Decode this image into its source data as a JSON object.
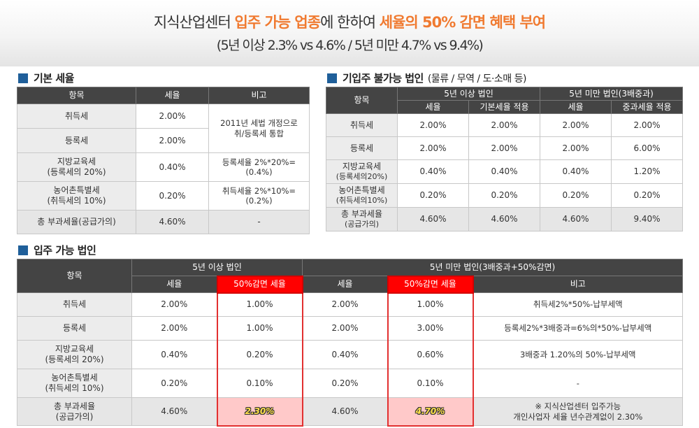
{
  "header": {
    "title_pre": "지식산업센터 ",
    "title_hl1": "입주 가능 업종",
    "title_mid": "에 한하여 ",
    "title_hl2": "세율의 50% 감면 혜택 부여",
    "subtitle": "(5년 이상 2.3% vs 4.6% / 5년 미만 4.7% vs 9.4%)"
  },
  "basic": {
    "title": "기본 세율",
    "headers": [
      "항목",
      "세율",
      "비고"
    ],
    "rows": [
      {
        "item": "취득세",
        "rate": "2.00%"
      },
      {
        "item": "등록세",
        "rate": "2.00%"
      },
      {
        "item1": "지방교육세",
        "item2": "(등록세의 20%)",
        "rate": "0.40%",
        "note": "등록세율 2%*20%=(0.4%)"
      },
      {
        "item1": "농어촌특별세",
        "item2": "(취득세의 10%)",
        "rate": "0.20%",
        "note": "취득세율 2%*10%=(0.2%)"
      },
      {
        "item": "총 부과세율(공급가의)",
        "rate": "4.60%",
        "note": "-"
      }
    ],
    "merged_note1": "2011년 세법 개정으로",
    "merged_note2": "취/등록세 통합"
  },
  "unavailable": {
    "title": "기입주 불가능 법인",
    "title_sub": "(물류 / 무역 / 도·소매 등)",
    "headers": {
      "item": "항목",
      "over5": "5년 이상 법인",
      "under5": "5년 미만 법인(3배중과)",
      "rate": "세율",
      "base_applied": "기본세율 적용",
      "rate2": "세율",
      "surcharge_applied": "중과세율 적용"
    },
    "rows": [
      {
        "item1": "취득세",
        "item2": "",
        "v": [
          "2.00%",
          "2.00%",
          "2.00%",
          "2.00%"
        ]
      },
      {
        "item1": "등록세",
        "item2": "",
        "v": [
          "2.00%",
          "2.00%",
          "2.00%",
          "6.00%"
        ]
      },
      {
        "item1": "지방교육세",
        "item2": "(등록세의20%)",
        "v": [
          "0.40%",
          "0.40%",
          "0.40%",
          "1.20%"
        ]
      },
      {
        "item1": "농어촌특별세",
        "item2": "(취득세의10%)",
        "v": [
          "0.20%",
          "0.20%",
          "0.20%",
          "0.20%"
        ]
      },
      {
        "item1": "총 부과세율",
        "item2": "(공급가의)",
        "v": [
          "4.60%",
          "4.60%",
          "4.60%",
          "9.40%"
        ]
      }
    ]
  },
  "available": {
    "title": "입주 가능 법인",
    "headers": {
      "item": "항목",
      "over5": "5년 이상 법인",
      "under5": "5년 미만 법인(3배중과+50%감면)",
      "rate": "세율",
      "reduced": "50%감면 세율",
      "rate2": "세율",
      "reduced2": "50%감면 세율",
      "note": "비고"
    },
    "rows": [
      {
        "item1": "취득세",
        "item2": "",
        "v": [
          "2.00%",
          "1.00%",
          "2.00%",
          "1.00%"
        ],
        "note1": "취득세2%*50%-납부세액",
        "note2": ""
      },
      {
        "item1": "등록세",
        "item2": "",
        "v": [
          "2.00%",
          "1.00%",
          "2.00%",
          "3.00%"
        ],
        "note1": "등록세2%*3배중과=6%의*50%-납부세액",
        "note2": ""
      },
      {
        "item1": "지방교육세",
        "item2": "(등록세의 20%)",
        "v": [
          "0.40%",
          "0.20%",
          "0.40%",
          "0.60%"
        ],
        "note1": "3배중과 1.20%의 50%-납부세액",
        "note2": ""
      },
      {
        "item1": "농어촌특별세",
        "item2": "(취득세의 10%)",
        "v": [
          "0.20%",
          "0.10%",
          "0.20%",
          "0.10%"
        ],
        "note1": "-",
        "note2": ""
      },
      {
        "item1": "총 부과세율",
        "item2": "(공급가의)",
        "v": [
          "4.60%",
          "2.30%",
          "4.60%",
          "4.70%"
        ],
        "note1": "※ 지식산업센터 입주가능",
        "note2": "개인사업자 세율 년수관계없이 2.30%"
      }
    ]
  }
}
